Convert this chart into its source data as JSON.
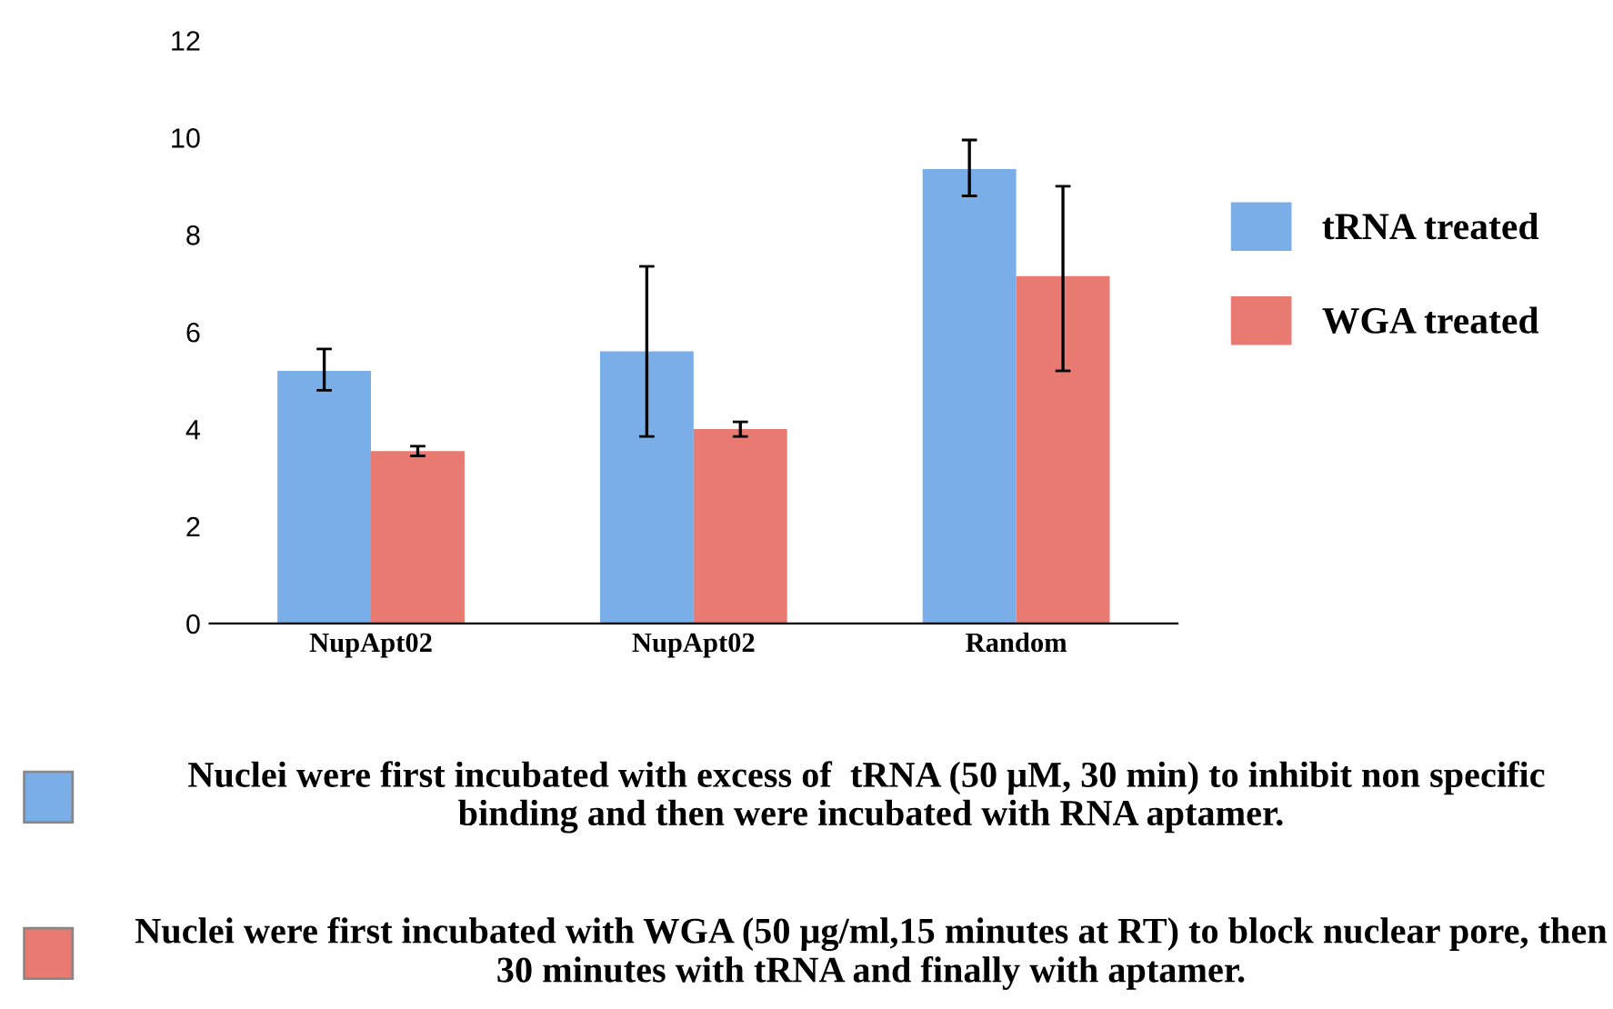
{
  "chart_data": {
    "type": "bar",
    "categories": [
      "NupApt02",
      "NupApt02",
      "Random"
    ],
    "series": [
      {
        "name": "tRNA treated",
        "color": "#7aaee8",
        "values": [
          5.2,
          5.6,
          9.35
        ],
        "errors": [
          [
            4.8,
            5.65
          ],
          [
            3.85,
            7.35
          ],
          [
            8.8,
            9.95
          ]
        ]
      },
      {
        "name": "WGA treated",
        "color": "#e87a72",
        "values": [
          3.55,
          4.0,
          7.15
        ],
        "errors": [
          [
            3.45,
            3.65
          ],
          [
            3.85,
            4.15
          ],
          [
            5.2,
            9.0
          ]
        ]
      }
    ],
    "ylim": [
      0,
      12
    ],
    "yticks": [
      0,
      2,
      4,
      6,
      8,
      10,
      12
    ],
    "grid": false,
    "legend": "right",
    "annotations": [
      "Nuclei were first incubated with excess of  tRNA (50 μM, 30 min) to inhibit non specific  binding and then were incubated with RNA aptamer.",
      "Nuclei were first incubated with WGA (50 μg/ml,15 minutes at RT) to block nuclear pore, then 30 minutes with tRNA and finally with aptamer."
    ]
  }
}
